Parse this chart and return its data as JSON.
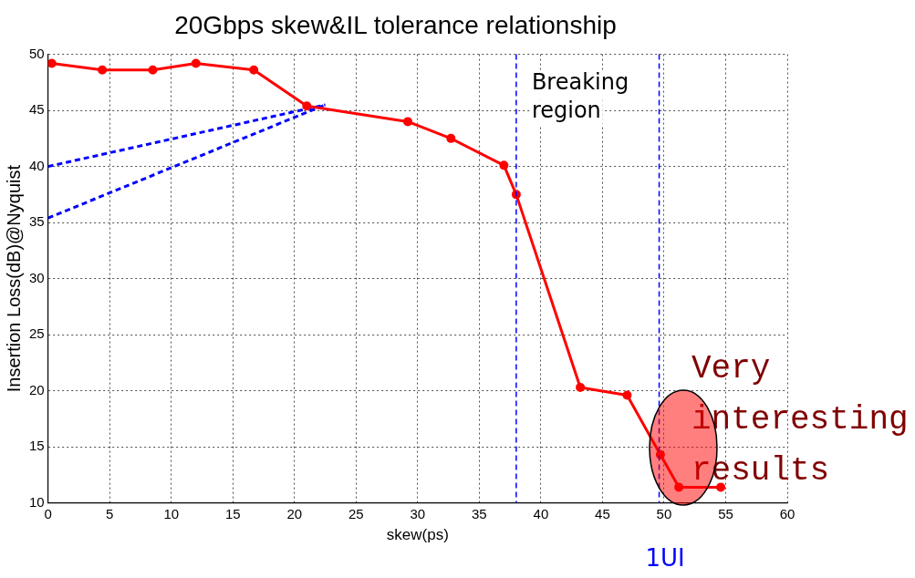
{
  "chart_data": {
    "type": "line",
    "title": "20Gbps skew&IL tolerance relationship",
    "xlabel": "skew(ps)",
    "ylabel": "Insertion Loss(dB)@Nyquist",
    "xlim": [
      0,
      60
    ],
    "xticks": [
      0,
      5,
      10,
      15,
      20,
      25,
      30,
      35,
      40,
      45,
      50,
      55,
      60
    ],
    "ylim": [
      10,
      50
    ],
    "yticks": [
      10,
      15,
      20,
      25,
      30,
      35,
      40,
      45,
      50
    ],
    "grid": true,
    "legend": false,
    "marker": "circle",
    "line_style": "solid",
    "series": [
      {
        "color": "#ff0000",
        "x": [
          0.3,
          4.4,
          8.5,
          12.0,
          16.7,
          21.0,
          29.2,
          32.7,
          37.0,
          38.0,
          43.2,
          47.0,
          49.7,
          51.2,
          54.6
        ],
        "values": [
          49.2,
          48.6,
          48.6,
          49.2,
          48.6,
          45.4,
          44.0,
          42.5,
          40.1,
          37.5,
          20.3,
          19.6,
          14.3,
          11.4,
          11.4
        ]
      },
      {
        "color": "#0000ff",
        "x": [
          0,
          22.5
        ],
        "values": [
          40.0,
          45.5
        ],
        "marker": "none",
        "line_style": "dashed"
      },
      {
        "color": "#0000ff",
        "x": [
          0,
          22.5
        ],
        "values": [
          35.4,
          45.5
        ],
        "marker": "none",
        "line_style": "dashed"
      }
    ],
    "ref_lines": [
      {
        "axis": "x",
        "value": 38,
        "label": "Breaking region",
        "color": "#0000ff",
        "line_style": "dashed"
      },
      {
        "axis": "x",
        "value": 49.6,
        "label": "1UI",
        "color": "#0000ff",
        "line_style": "dashed"
      }
    ],
    "annotations": [
      "Very interesting results"
    ]
  }
}
